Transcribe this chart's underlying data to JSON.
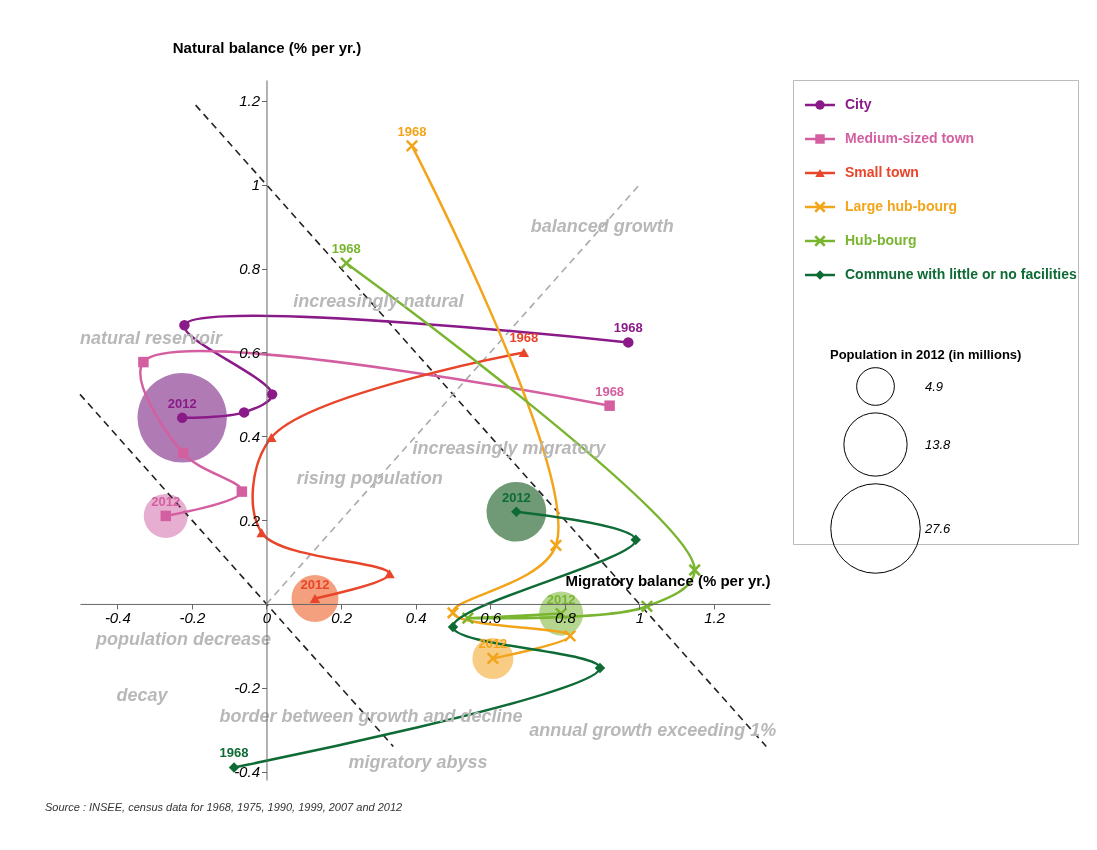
{
  "chart_data": {
    "type": "line",
    "xlabel": "Migratory balance (% per yr.)",
    "ylabel": "Natural balance (% per yr.)",
    "legend_title": "Population in 2012 (in millions)",
    "legend": "top right",
    "line_style": "solid",
    "xlim": [
      -0.5,
      1.35
    ],
    "ylim": [
      -0.42,
      1.25
    ],
    "xticks": [
      -0.4,
      -0.2,
      0,
      0.2,
      0.4,
      0.6,
      0.8,
      1,
      1.2
    ],
    "yticks": [
      -0.4,
      -0.2,
      0.2,
      0.4,
      0.6,
      0.8,
      1,
      1.2
    ],
    "size_legend": [
      4.9,
      13.8,
      27.6
    ],
    "series": [
      {
        "type": "bubble",
        "x": [
          -0.226,
          -0.27,
          0.13,
          0.607,
          0.79,
          0.67
        ],
        "values": [
          0.444,
          0.21,
          0.013,
          -0.13,
          -0.023,
          0.22
        ],
        "sizes": [
          27.6,
          6.7,
          7.6,
          5.8,
          6.7,
          12.3
        ],
        "colors": [
          "#b07bb4",
          "#e6aed0",
          "#f4a07e",
          "#f9cc84",
          "#b5d68f",
          "#6f9a75"
        ]
      },
      {
        "x": [
          -0.5,
          0.34
        ],
        "values": [
          0.5,
          -0.34
        ],
        "color": "#222222",
        "line_style": "dashed",
        "marker": "none"
      },
      {
        "x": [
          -0.19,
          1.34
        ],
        "values": [
          1.19,
          -0.34
        ],
        "color": "#222222",
        "line_style": "dashed",
        "marker": "none"
      },
      {
        "x": [
          0,
          1
        ],
        "values": [
          0,
          1
        ],
        "color": "#aaaaaa",
        "line_style": "dashed",
        "marker": "none"
      },
      {
        "name": "City",
        "color": "#8b1a89",
        "marker": "circle",
        "x": [
          0.97,
          -0.22,
          0.015,
          -0.06,
          -0.226
        ],
        "values": [
          0.624,
          0.665,
          0.5,
          0.457,
          0.444
        ]
      },
      {
        "name": "Medium-sized town",
        "color": "#d45fa0",
        "marker": "square",
        "x": [
          0.92,
          -0.33,
          -0.224,
          -0.066,
          -0.27
        ],
        "values": [
          0.473,
          0.577,
          0.36,
          0.268,
          0.21
        ]
      },
      {
        "name": "Small town",
        "color": "#e8452a",
        "marker": "triangle",
        "x": [
          0.69,
          0.013,
          -0.013,
          0.33,
          0.13
        ],
        "values": [
          0.6,
          0.397,
          0.17,
          0.072,
          0.013
        ]
      },
      {
        "name": "Large hub-bourg",
        "color": "#f2a51a",
        "marker": "cross",
        "x": [
          0.39,
          0.776,
          0.5,
          0.814,
          0.607
        ],
        "values": [
          1.093,
          0.14,
          -0.021,
          -0.076,
          -0.13
        ]
      },
      {
        "name": "Hub-bourg",
        "color": "#7ab530",
        "marker": "cross",
        "x": [
          0.214,
          1.148,
          1.02,
          0.54,
          0.79
        ],
        "values": [
          0.813,
          0.081,
          -0.006,
          -0.034,
          -0.023
        ]
      },
      {
        "name": "Commune with little or no facilities",
        "color": "#0e6b35",
        "marker": "diamond",
        "x": [
          -0.087,
          0.894,
          0.5,
          0.99,
          0.67
        ],
        "values": [
          -0.39,
          -0.153,
          -0.055,
          0.153,
          0.22
        ]
      }
    ],
    "annotations": [
      {
        "text": "1968",
        "x": 0.97,
        "y": 0.624
      },
      {
        "text": "2012",
        "x": -0.226,
        "y": 0.444
      },
      {
        "text": "1968",
        "x": 0.92,
        "y": 0.473
      },
      {
        "text": "2012",
        "x": -0.27,
        "y": 0.21
      },
      {
        "text": "1968",
        "x": 0.69,
        "y": 0.6
      },
      {
        "text": "2012",
        "x": 0.13,
        "y": 0.013
      },
      {
        "text": "1968",
        "x": 0.39,
        "y": 1.093
      },
      {
        "text": "2012",
        "x": 0.607,
        "y": -0.13
      },
      {
        "text": "1968",
        "x": 0.214,
        "y": 0.813
      },
      {
        "text": "2012",
        "x": 0.79,
        "y": -0.023
      },
      {
        "text": "1968",
        "x": -0.087,
        "y": -0.39
      },
      {
        "text": "2012",
        "x": 0.67,
        "y": 0.22
      },
      {
        "text": "increasingly natural",
        "x": 0.3,
        "y": 0.72
      },
      {
        "text": "increasingly migratory",
        "x": 0.65,
        "y": 0.37
      },
      {
        "text": "balanced growth",
        "x": 0.9,
        "y": 0.9
      },
      {
        "text": "border between growth and decline",
        "x": 0.28,
        "y": -0.27
      },
      "natural reservoir",
      "rising population",
      "population decrease",
      "decay",
      "migratory abyss",
      "annual growth exceeding 1%",
      "Source : INSEE, census data for 1968, 1975, 1990, 1999, 2007 and 2012"
    ]
  }
}
